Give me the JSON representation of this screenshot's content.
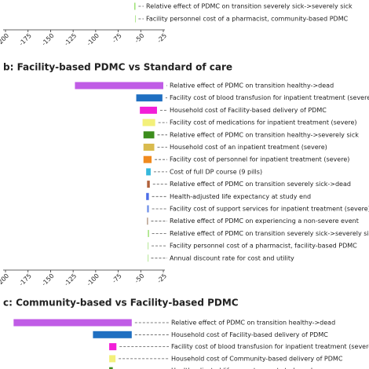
{
  "chart_data": [
    {
      "type": "tornado",
      "categories": [
        "Relative effect of PDMC on transition severely sick->severely sick",
        "Facility personnel cost of a pharmacist, community-based PDMC"
      ],
      "low": [
        -57,
        -56
      ],
      "high": [
        -56,
        -56
      ],
      "colors": [
        "#7fd84a",
        "#7fd84a"
      ],
      "xlim": [
        -200,
        -25
      ],
      "xticks": [
        -200,
        -175,
        -150,
        -125,
        -100,
        -75,
        -50,
        -25
      ]
    },
    {
      "type": "tornado",
      "title": "b: Facility-based PDMC vs Standard of care",
      "categories": [
        "Relative effect of PDMC on transition healthy->dead",
        "Facility cost of blood transfusion for inpatient treatment (severe)",
        "Household cost of Facility-based delivery of PDMC",
        "Facility cost of medications for inpatient treatment (severe)",
        "Relative effect of PDMC on transition healthy->severely sick",
        "Household cost of an inpatient treatment (severe)",
        "Facility cost of personnel for inpatient treatment (severe)",
        "Cost of full DP course (9 pills)",
        "Relative effect of PDMC on transition severely sick->dead",
        "Health-adjusted life expectancy at study end",
        "Facility cost of support services for inpatient treatment (severe)",
        "Relative effect of PDMC on experiencing a non-severe event",
        "Relative effect of PDMC on transition severely sick->severely sick",
        "Facility personnel cost of a pharmacist, facility-based PDMC",
        "Annual discount rate for cost and utility"
      ],
      "low": [
        -123,
        -55,
        -51,
        -48,
        -47,
        -47,
        -47,
        -44,
        -43,
        -44,
        -43,
        -43,
        -42,
        -42,
        -42
      ],
      "high": [
        -25,
        -26,
        -32,
        -34,
        -35,
        -35,
        -38,
        -39,
        -40,
        -41,
        -41,
        -42,
        -41,
        -41.5,
        -42
      ],
      "colors": [
        "#c05ce6",
        "#1f6fc1",
        "#f21fd8",
        "#f3f07a",
        "#3c8d1c",
        "#d9bb4e",
        "#f08a1e",
        "#35b8dc",
        "#b0603a",
        "#4d6ee8",
        "#6e8fe8",
        "#a0826a",
        "#7fd84a",
        "#7fd84a",
        "#7fd84a"
      ],
      "xlim": [
        -200,
        -25
      ],
      "xticks": [
        -200,
        -175,
        -150,
        -125,
        -100,
        -75,
        -50,
        -25
      ]
    },
    {
      "type": "tornado",
      "title": "c: Community-based vs Facility-based PDMC",
      "categories": [
        "Relative effect of PDMC on transition healthy->dead",
        "Household cost of Facility-based delivery of PDMC",
        "Facility cost of blood transfusion for inpatient treatment (severe)",
        "Household cost of Community-based delivery of PDMC",
        "Health-adjusted life expectancy at study end"
      ],
      "low": [
        -191,
        -103,
        -85,
        -85,
        -85
      ],
      "high": [
        -60,
        -60,
        -77,
        -78,
        -81
      ],
      "colors": [
        "#c05ce6",
        "#1f6fc1",
        "#f21fd8",
        "#f3f07a",
        "#3c8d1c"
      ],
      "xlim": [
        -200,
        -25
      ]
    }
  ]
}
